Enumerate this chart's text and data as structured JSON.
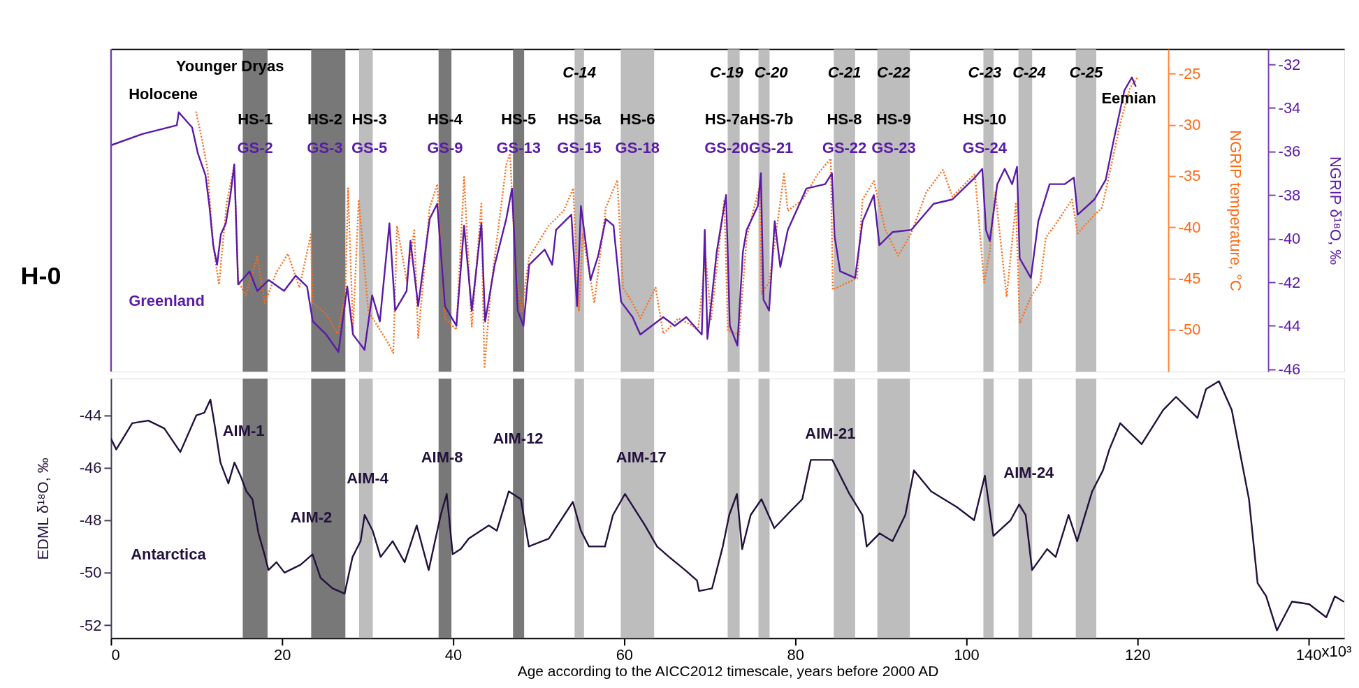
{
  "chart_data": [
    {
      "type": "line",
      "xlim": [
        0,
        144.2
      ],
      "ylim": [
        -54.1,
        -22.6
      ],
      "yticks": [
        -50,
        -45,
        -40,
        -35,
        -30,
        -25
      ],
      "y2lim": [
        -46.1,
        -31.3
      ],
      "y2ticks": [
        -46,
        -44,
        -42,
        -40,
        -38,
        -36,
        -34,
        -32
      ],
      "ylabel": "NGRIP temperature, °C",
      "y2label": "NGRIP δ¹⁸O, ‰",
      "tick_labels": "y",
      "series": [
        {
          "color": "#ff6a13",
          "line_style": "dotted",
          "x": [
            9.93,
            10.6,
            11.28,
            11.95,
            12.62,
            13.51,
            14.41,
            14.86,
            15.75,
            17.1,
            17.99,
            19.34,
            20.68,
            22.02,
            23.37,
            23.59,
            25.16,
            26.5,
            27.4,
            27.71,
            28.29,
            28.96,
            30.08,
            32.32,
            33.0,
            33.44,
            34.56,
            35.46,
            35.91,
            37.25,
            38.14,
            39.04,
            40.38,
            41.28,
            42.18,
            43.3,
            43.65,
            44.42,
            46.21,
            46.65,
            47.33,
            48.0,
            48.89,
            51.13,
            52.92,
            54.04,
            54.71,
            55.16,
            56.51,
            57.85,
            59.19,
            59.86,
            60.98,
            61.88,
            63.67,
            64.57,
            66.36,
            68.15,
            68.63,
            69.51,
            70.16,
            71.7,
            72.13,
            73.44,
            74.32,
            75.85,
            76.07,
            76.94,
            77.82,
            78.69,
            79.13,
            80.88,
            82.63,
            84.16,
            84.38,
            86.12,
            87.22,
            87.87,
            89.19,
            90.5,
            92.03,
            93.56,
            95.31,
            97.27,
            98.37,
            101.0,
            102.09,
            102.74,
            103.4,
            104.71,
            105.8,
            106.24,
            107.55,
            108.64,
            109.3,
            110.61,
            112.36,
            113.02,
            114.98,
            115.86,
            116.73,
            118.04,
            119.14,
            120.01
          ],
          "values": [
            -28.7,
            -31.3,
            -34.3,
            -41.8,
            -45.6,
            -37.7,
            -33.9,
            -45.2,
            -46.7,
            -42.9,
            -47.4,
            -44.4,
            -42.6,
            -45.9,
            -40.7,
            -47.4,
            -48.5,
            -50.4,
            -46.3,
            -36.2,
            -50.0,
            -37.3,
            -48.2,
            -51.2,
            -52.3,
            -39.9,
            -45.2,
            -40.3,
            -50.8,
            -38.1,
            -35.8,
            -48.9,
            -50.0,
            -35.1,
            -49.7,
            -37.7,
            -53.8,
            -45.9,
            -33.9,
            -32.8,
            -44.4,
            -48.2,
            -42.9,
            -39.9,
            -38.4,
            -36.2,
            -48.2,
            -40.7,
            -47.4,
            -38.1,
            -35.4,
            -45.9,
            -47.4,
            -48.9,
            -45.9,
            -50.4,
            -48.9,
            -49.7,
            -50.1,
            -42.8,
            -49.0,
            -37.3,
            -50.1,
            -50.5,
            -41.0,
            -35.9,
            -46.5,
            -45.4,
            -40.2,
            -34.8,
            -38.4,
            -37.3,
            -34.8,
            -33.3,
            -46.1,
            -45.4,
            -45.0,
            -37.3,
            -35.5,
            -40.2,
            -42.8,
            -40.6,
            -36.6,
            -34.4,
            -37.0,
            -34.8,
            -45.4,
            -42.4,
            -36.6,
            -46.8,
            -37.7,
            -49.4,
            -46.8,
            -45.4,
            -41.0,
            -39.5,
            -37.3,
            -40.6,
            -38.8,
            -38.1,
            -34.8,
            -29.7,
            -26.4,
            -25.4
          ]
        },
        {
          "color": "#5a1aa8",
          "axis": "y2",
          "line_style": "solid",
          "x": [
            0.1,
            3.66,
            7.69,
            7.92,
            9.48,
            10.16,
            11.05,
            11.5,
            11.95,
            12.4,
            12.84,
            13.42,
            13.96,
            14.41,
            14.86,
            16.2,
            17.1,
            18.44,
            20.23,
            21.58,
            22.92,
            23.59,
            25.16,
            26.59,
            27.62,
            28.29,
            29.64,
            30.53,
            31.43,
            32.55,
            33.22,
            34.56,
            35.01,
            35.91,
            37.25,
            38.14,
            39.04,
            40.38,
            41.28,
            42.18,
            43.3,
            43.74,
            44.86,
            46.21,
            46.88,
            47.55,
            48.22,
            48.89,
            50.7,
            51.58,
            52.03,
            53.82,
            54.49,
            54.94,
            56.06,
            56.95,
            57.85,
            58.75,
            59.64,
            60.98,
            61.88,
            63.22,
            64.57,
            65.91,
            67.26,
            69.07,
            69.42,
            69.73,
            70.82,
            71.91,
            72.35,
            73.23,
            73.88,
            74.32,
            75.63,
            75.98,
            76.29,
            76.94,
            77.6,
            78.25,
            79.13,
            81.3,
            83.5,
            84.29,
            84.6,
            85.25,
            87.0,
            87.87,
            89.19,
            89.84,
            91.37,
            93.56,
            96.18,
            98.37,
            101.0,
            101.87,
            102.3,
            102.74,
            103.62,
            104.49,
            105.36,
            105.93,
            106.24,
            107.55,
            108.42,
            109.74,
            111.49,
            112.58,
            113.02,
            114.98,
            116.3,
            117.17,
            118.48,
            119.36,
            119.79
          ],
          "values": [
            -35.7,
            -35.2,
            -34.8,
            -34.2,
            -34.9,
            -36.1,
            -37.1,
            -38.5,
            -40.3,
            -41.2,
            -39.8,
            -39.3,
            -38.0,
            -36.6,
            -42.1,
            -41.5,
            -42.4,
            -41.9,
            -42.4,
            -41.7,
            -42.2,
            -43.8,
            -44.4,
            -45.2,
            -42.2,
            -44.4,
            -45.1,
            -42.6,
            -43.8,
            -39.3,
            -43.3,
            -42.4,
            -40.1,
            -43.1,
            -39.1,
            -38.4,
            -43.1,
            -44.0,
            -39.4,
            -43.3,
            -39.3,
            -43.8,
            -41.2,
            -39.1,
            -37.7,
            -43.3,
            -44.0,
            -41.2,
            -40.5,
            -41.2,
            -39.6,
            -38.9,
            -43.1,
            -38.5,
            -41.9,
            -40.8,
            -39.1,
            -39.4,
            -42.9,
            -43.6,
            -44.4,
            -44.0,
            -43.6,
            -44.0,
            -43.6,
            -44.4,
            -39.6,
            -44.6,
            -40.6,
            -38.0,
            -44.0,
            -44.9,
            -40.6,
            -39.6,
            -38.5,
            -37.0,
            -42.8,
            -43.3,
            -39.2,
            -41.3,
            -39.6,
            -37.7,
            -37.5,
            -37.0,
            -39.9,
            -41.5,
            -41.8,
            -39.2,
            -38.0,
            -40.3,
            -39.7,
            -39.6,
            -38.4,
            -38.2,
            -37.2,
            -36.8,
            -39.6,
            -40.1,
            -37.5,
            -36.8,
            -37.5,
            -36.7,
            -40.9,
            -41.8,
            -39.2,
            -37.5,
            -37.5,
            -37.2,
            -38.9,
            -38.2,
            -37.3,
            -35.6,
            -33.2,
            -32.6,
            -33.0
          ]
        }
      ],
      "bands": [
        {
          "axis": "x",
          "from": 15.4,
          "to": 18.3,
          "color": "#787878",
          "label": "HS-1\nGS-2"
        },
        {
          "axis": "x",
          "from": 23.4,
          "to": 27.4,
          "color": "#787878",
          "label": "HS-2\nGS-3"
        },
        {
          "axis": "x",
          "from": 29.0,
          "to": 30.6,
          "color": "#bdbdbd",
          "label": "HS-3\nGS-5"
        },
        {
          "axis": "x",
          "from": 38.3,
          "to": 39.8,
          "color": "#787878",
          "label": "HS-4\nGS-9"
        },
        {
          "axis": "x",
          "from": 47.0,
          "to": 48.3,
          "color": "#787878",
          "label": "HS-5\nGS-13"
        },
        {
          "axis": "x",
          "from": 54.2,
          "to": 55.3,
          "color": "#bdbdbd",
          "label": "C-14\nHS-5a\nGS-15"
        },
        {
          "axis": "x",
          "from": 59.6,
          "to": 63.5,
          "color": "#bdbdbd",
          "label": "HS-6\nGS-18"
        },
        {
          "axis": "x",
          "from": 72.1,
          "to": 73.5,
          "color": "#bdbdbd",
          "label": "C-19\nHS-7a\nGS-20"
        },
        {
          "axis": "x",
          "from": 75.7,
          "to": 77.0,
          "color": "#bdbdbd",
          "label": "C-20\nHS-7b\nGS-21"
        },
        {
          "axis": "x",
          "from": 84.5,
          "to": 87.0,
          "color": "#bdbdbd",
          "label": "C-21\nHS-8\nGS-22"
        },
        {
          "axis": "x",
          "from": 89.6,
          "to": 93.4,
          "color": "#bdbdbd",
          "label": "C-22\nHS-9\nGS-23"
        },
        {
          "axis": "x",
          "from": 102.0,
          "to": 103.2,
          "color": "#bdbdbd",
          "label": "C-23\nHS-10\nGS-24"
        },
        {
          "axis": "x",
          "from": 106.1,
          "to": 107.7,
          "color": "#bdbdbd",
          "label": "C-24"
        },
        {
          "axis": "x",
          "from": 112.8,
          "to": 115.2,
          "color": "#bdbdbd",
          "label": "C-25"
        }
      ],
      "annotations": [
        "Younger Dryas",
        "Holocene",
        "H-0",
        "Greenland",
        "Eemian"
      ]
    },
    {
      "type": "line",
      "xlim": [
        0,
        144.2
      ],
      "xticks": [
        0,
        20,
        40,
        60,
        80,
        100,
        120,
        140
      ],
      "ylim": [
        -52.5,
        -42.6
      ],
      "yticks": [
        -52,
        -50,
        -48,
        -46,
        -44
      ],
      "xlabel": "Age according to the AICC2012 timescale, years before 2000 AD",
      "ylabel": "EDML δ¹⁸O, ‰",
      "series": [
        {
          "color": "#22113d",
          "line_style": "solid",
          "x": [
            0,
            0.61,
            2.48,
            4.36,
            6.23,
            8.1,
            9.98,
            10.91,
            11.62,
            12.08,
            12.79,
            13.72,
            14.43,
            15.13,
            15.83,
            16.53,
            17.24,
            17.94,
            18.41,
            19.34,
            20.28,
            22.15,
            23.56,
            24.5,
            25.9,
            27.31,
            28.24,
            29.18,
            29.65,
            30.59,
            31.52,
            32.93,
            34.33,
            35.74,
            37.14,
            38.55,
            39.25,
            39.95,
            40.89,
            41.83,
            43.23,
            44.17,
            45.1,
            46.51,
            47.92,
            48.85,
            51.19,
            54.0,
            54.94,
            55.88,
            57.75,
            58.69,
            60.09,
            62.44,
            63.84,
            65.25,
            67.12,
            68.52,
            68.76,
            70.27,
            71.53,
            72.28,
            73.18,
            73.79,
            74.79,
            76.05,
            77.55,
            79.31,
            80.82,
            81.82,
            84.33,
            86.34,
            87.85,
            88.35,
            89.86,
            91.37,
            92.87,
            93.88,
            95.89,
            98.9,
            100.91,
            102.17,
            103.17,
            105.18,
            106.18,
            106.94,
            107.69,
            109.45,
            110.45,
            111.96,
            112.96,
            114.72,
            115.98,
            116.73,
            118.0,
            120.5,
            123.01,
            124.52,
            127.03,
            128.03,
            129.54,
            131.04,
            133.05,
            134.06,
            135.06,
            136.32,
            138.08,
            140.09,
            142.09,
            143.09,
            144.1
          ],
          "values": [
            -44.9,
            -45.3,
            -44.3,
            -44.2,
            -44.5,
            -45.4,
            -44.0,
            -43.9,
            -43.4,
            -44.3,
            -45.8,
            -46.6,
            -45.8,
            -46.3,
            -46.9,
            -47.2,
            -48.5,
            -49.3,
            -49.9,
            -49.6,
            -50.0,
            -49.7,
            -49.3,
            -50.2,
            -50.6,
            -50.8,
            -49.4,
            -48.8,
            -47.8,
            -48.4,
            -49.4,
            -48.8,
            -49.6,
            -48.2,
            -49.9,
            -47.8,
            -47.0,
            -49.3,
            -49.1,
            -48.7,
            -48.4,
            -48.2,
            -48.4,
            -46.9,
            -47.2,
            -49.0,
            -48.7,
            -47.3,
            -48.4,
            -49.0,
            -49.0,
            -47.8,
            -47.0,
            -48.2,
            -49.0,
            -49.4,
            -49.9,
            -50.3,
            -50.7,
            -50.6,
            -49.0,
            -47.8,
            -47.0,
            -49.1,
            -47.8,
            -47.2,
            -48.3,
            -47.7,
            -47.2,
            -45.7,
            -45.7,
            -47.0,
            -47.8,
            -49.0,
            -48.5,
            -48.8,
            -47.8,
            -46.1,
            -46.9,
            -47.5,
            -48.0,
            -46.3,
            -48.6,
            -48.0,
            -47.4,
            -47.8,
            -49.9,
            -49.1,
            -49.4,
            -47.8,
            -48.8,
            -46.9,
            -46.1,
            -45.3,
            -44.3,
            -45.1,
            -43.8,
            -43.3,
            -44.1,
            -43.0,
            -42.7,
            -43.8,
            -47.2,
            -50.4,
            -50.9,
            -52.2,
            -51.1,
            -51.2,
            -51.7,
            -50.9,
            -51.1
          ]
        }
      ],
      "bands": [
        {
          "axis": "x",
          "from": 15.4,
          "to": 18.3,
          "color": "#787878"
        },
        {
          "axis": "x",
          "from": 23.4,
          "to": 27.4,
          "color": "#787878"
        },
        {
          "axis": "x",
          "from": 29.0,
          "to": 30.6,
          "color": "#bdbdbd"
        },
        {
          "axis": "x",
          "from": 38.3,
          "to": 39.8,
          "color": "#787878"
        },
        {
          "axis": "x",
          "from": 47.0,
          "to": 48.3,
          "color": "#787878"
        },
        {
          "axis": "x",
          "from": 54.2,
          "to": 55.3,
          "color": "#bdbdbd"
        },
        {
          "axis": "x",
          "from": 59.6,
          "to": 63.5,
          "color": "#bdbdbd"
        },
        {
          "axis": "x",
          "from": 72.1,
          "to": 73.5,
          "color": "#bdbdbd"
        },
        {
          "axis": "x",
          "from": 75.7,
          "to": 77.0,
          "color": "#bdbdbd"
        },
        {
          "axis": "x",
          "from": 84.5,
          "to": 87.0,
          "color": "#bdbdbd"
        },
        {
          "axis": "x",
          "from": 89.6,
          "to": 93.4,
          "color": "#bdbdbd"
        },
        {
          "axis": "x",
          "from": 102.0,
          "to": 103.2,
          "color": "#bdbdbd"
        },
        {
          "axis": "x",
          "from": 106.1,
          "to": 107.7,
          "color": "#bdbdbd"
        },
        {
          "axis": "x",
          "from": 112.8,
          "to": 115.2,
          "color": "#bdbdbd"
        }
      ],
      "annotations": [
        "AIM-1",
        "AIM-2",
        "AIM-4",
        "AIM-8",
        "AIM-12",
        "AIM-17",
        "AIM-21",
        "AIM-24",
        "Antarctica",
        "x10³"
      ]
    }
  ]
}
